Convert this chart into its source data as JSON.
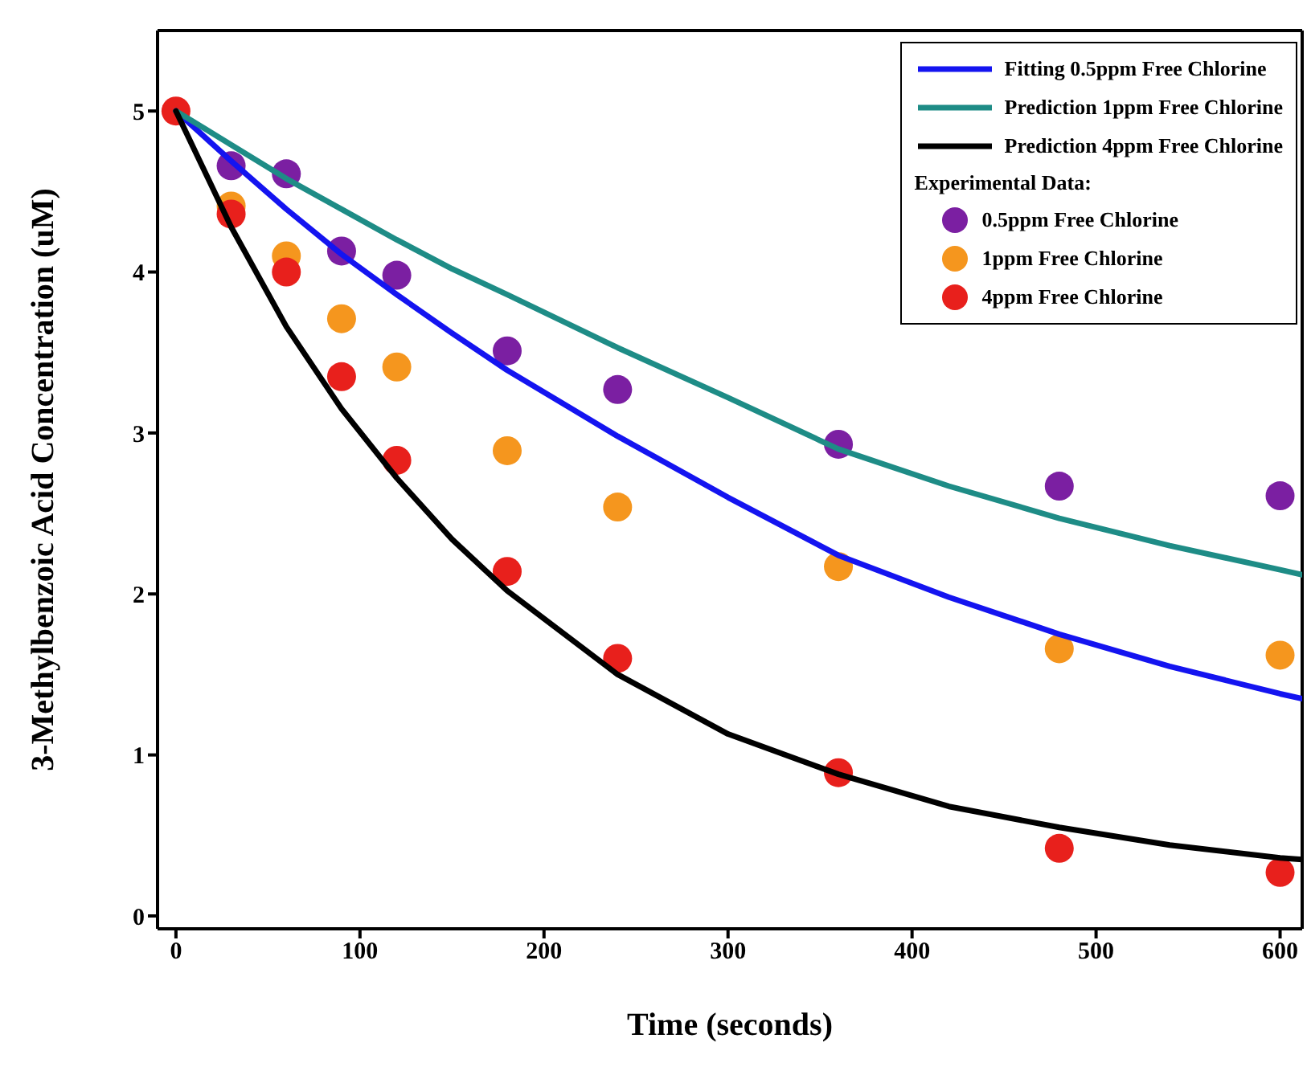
{
  "chart_data": {
    "type": "scatter",
    "xlabel": "Time (seconds)",
    "ylabel": "3-Methylbenzoic Acid Concentration (uM)",
    "legend_title": "Experimental Data:",
    "legend": "top right",
    "marker": "circle",
    "xlim": [
      -10,
      612
    ],
    "ylim": [
      -0.08,
      5.5
    ],
    "xticks": [
      0,
      100,
      200,
      300,
      400,
      500,
      600
    ],
    "yticks": [
      0,
      1,
      2,
      3,
      4,
      5
    ],
    "series": [
      {
        "name": "Fitting 0.5ppm Free Chlorine",
        "type": "line",
        "color": "#1414f0",
        "line_style": "solid",
        "marker": "none",
        "x": [
          0,
          30,
          60,
          90,
          120,
          150,
          180,
          240,
          300,
          360,
          420,
          480,
          540,
          600,
          612
        ],
        "values": [
          5,
          4.69,
          4.39,
          4.11,
          3.86,
          3.62,
          3.39,
          2.98,
          2.6,
          2.24,
          1.98,
          1.75,
          1.55,
          1.38,
          1.35
        ]
      },
      {
        "name": "Prediction 1ppm Free Chlorine",
        "type": "line",
        "color": "#1e8c86",
        "line_style": "solid",
        "marker": "none",
        "x": [
          0,
          30,
          60,
          90,
          120,
          150,
          180,
          240,
          300,
          360,
          420,
          480,
          540,
          600,
          612
        ],
        "values": [
          5,
          4.79,
          4.58,
          4.39,
          4.2,
          4.02,
          3.86,
          3.53,
          3.22,
          2.9,
          2.67,
          2.47,
          2.3,
          2.15,
          2.12
        ]
      },
      {
        "name": "Prediction 4ppm Free Chlorine",
        "type": "line",
        "color": "#000000",
        "line_style": "solid",
        "marker": "none",
        "x": [
          0,
          30,
          60,
          90,
          120,
          150,
          180,
          240,
          300,
          360,
          420,
          480,
          540,
          600,
          612
        ],
        "values": [
          5,
          4.28,
          3.66,
          3.15,
          2.72,
          2.34,
          2.02,
          1.5,
          1.13,
          0.88,
          0.68,
          0.55,
          0.44,
          0.36,
          0.35
        ]
      },
      {
        "name": "0.5ppm Free Chlorine",
        "color": "#7b1fa2",
        "x": [
          30,
          60,
          90,
          120,
          180,
          240,
          360,
          480,
          600
        ],
        "values": [
          4.66,
          4.61,
          4.13,
          3.98,
          3.51,
          3.27,
          2.93,
          2.67,
          2.61
        ]
      },
      {
        "name": "1ppm Free Chlorine",
        "color": "#f5961e",
        "x": [
          30,
          60,
          90,
          120,
          180,
          240,
          360,
          480,
          600
        ],
        "values": [
          4.41,
          4.1,
          3.71,
          3.41,
          2.89,
          2.54,
          2.17,
          1.66,
          1.62
        ]
      },
      {
        "name": "4ppm Free Chlorine",
        "color": "#e8201c",
        "x": [
          0,
          30,
          60,
          90,
          120,
          180,
          240,
          360,
          480,
          600
        ],
        "values": [
          5,
          4.36,
          4.0,
          3.35,
          2.83,
          2.14,
          1.6,
          0.89,
          0.42,
          0.27
        ]
      }
    ]
  }
}
